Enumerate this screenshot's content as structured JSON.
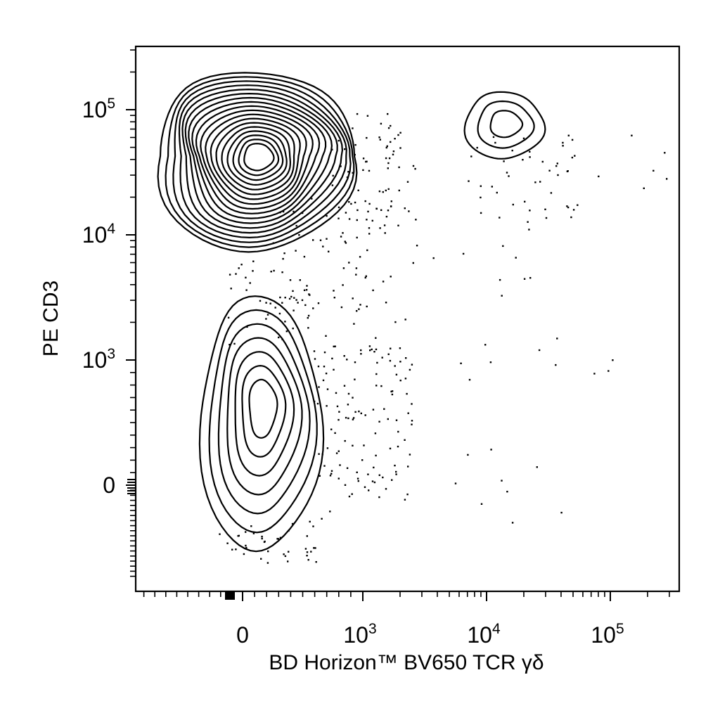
{
  "chart_data": {
    "type": "contour",
    "xlabel": "BD Horizon™ BV650 TCR γδ",
    "ylabel": "PE CD3",
    "x_axis": {
      "scale": "biexponential",
      "ticks": [
        {
          "value": 0,
          "base": "0",
          "exp": ""
        },
        {
          "value": 1000,
          "base": "10",
          "exp": "3"
        },
        {
          "value": 10000,
          "base": "10",
          "exp": "4"
        },
        {
          "value": 100000,
          "base": "10",
          "exp": "5"
        }
      ]
    },
    "y_axis": {
      "scale": "biexponential",
      "ticks": [
        {
          "value": 0,
          "base": "0",
          "exp": ""
        },
        {
          "value": 1000,
          "base": "10",
          "exp": "3"
        },
        {
          "value": 10000,
          "base": "10",
          "exp": "4"
        },
        {
          "value": 100000,
          "base": "10",
          "exp": "5"
        }
      ]
    },
    "populations": [
      {
        "center": [
          50,
          32000
        ],
        "rings": 18,
        "description": "CD3+ TCR γδ− cluster"
      },
      {
        "center": [
          50,
          450
        ],
        "rings": 7,
        "description": "CD3− TCR γδ− cluster"
      },
      {
        "center": [
          10000,
          65000
        ],
        "rings": 3,
        "description": "CD3+ TCR γδ+ cluster"
      }
    ]
  }
}
